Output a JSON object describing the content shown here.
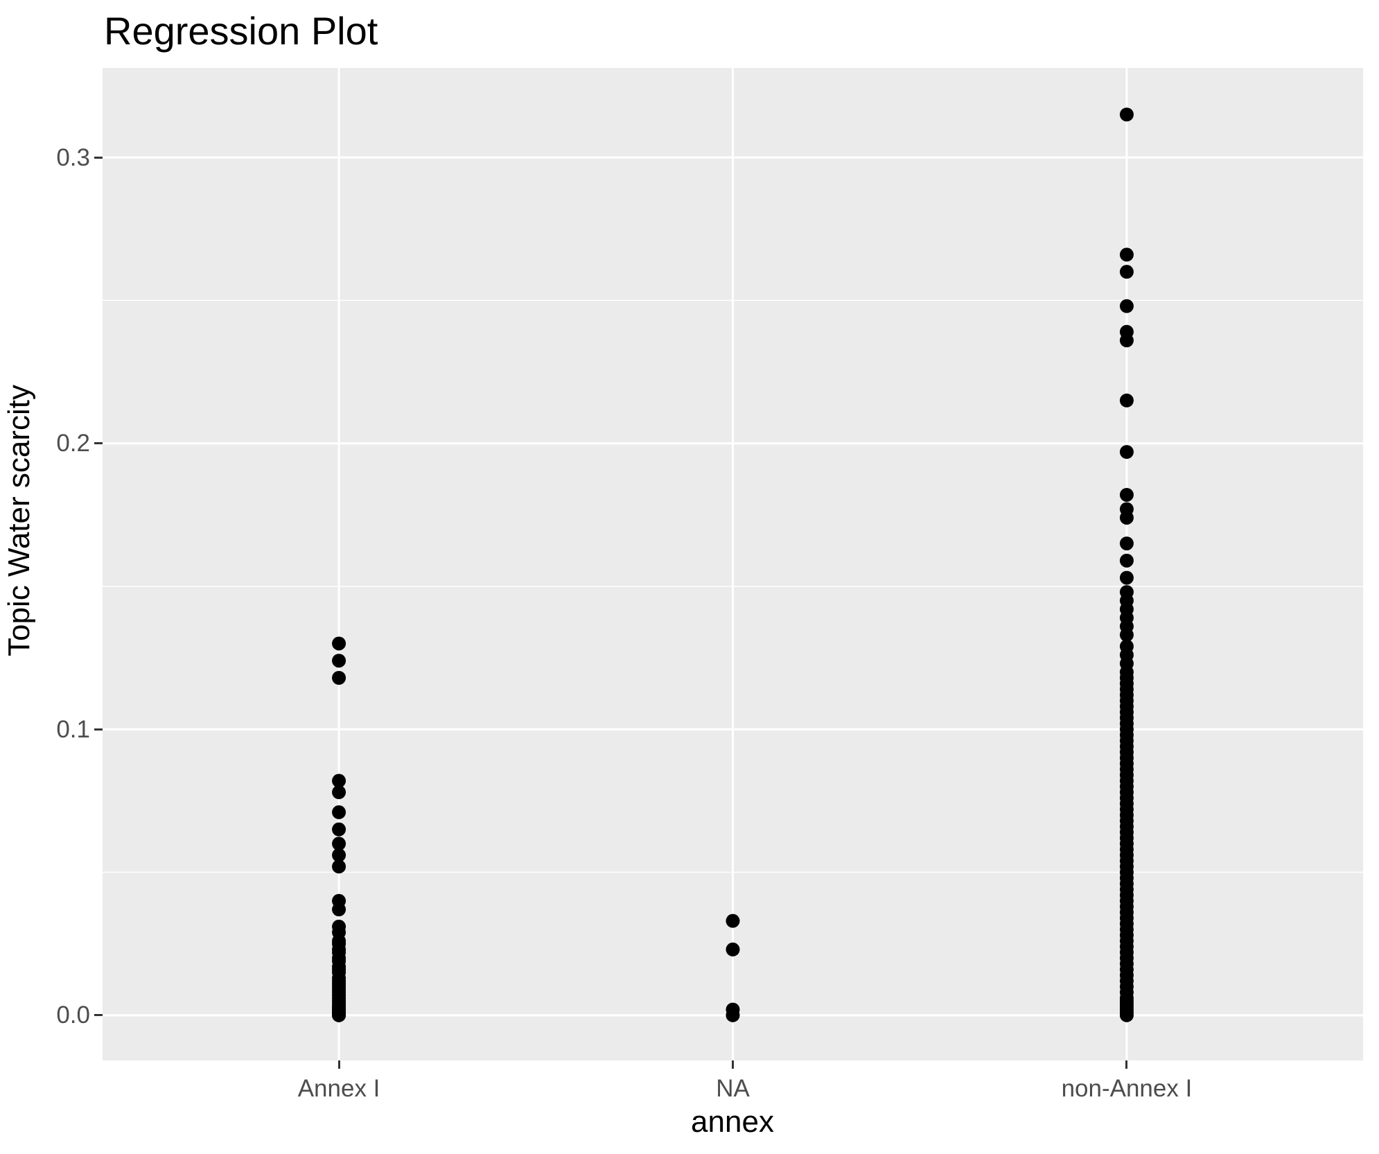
{
  "chart_data": {
    "type": "scatter",
    "title": "Regression Plot",
    "xlabel": "annex",
    "ylabel": "Topic Water scarcity",
    "categories": [
      "Annex I",
      "NA",
      "non-Annex I"
    ],
    "ylim": [
      -0.0158,
      0.3313
    ],
    "y_major_ticks": [
      {
        "value": 0.0,
        "label": "0.0"
      },
      {
        "value": 0.1,
        "label": "0.1"
      },
      {
        "value": 0.2,
        "label": "0.2"
      },
      {
        "value": 0.3,
        "label": "0.3"
      }
    ],
    "y_minor_ticks": [
      0.05,
      0.15,
      0.25
    ],
    "grid": true,
    "legend": false,
    "point_color": "#000000",
    "point_radius": 10,
    "panel_bg": "#EBEBEB",
    "grid_color": "#FFFFFF",
    "tick_color": "#333333",
    "tick_label_color": "#4D4D4D",
    "series": [
      {
        "name": "Annex I",
        "values": [
          0.13,
          0.124,
          0.118,
          0.082,
          0.078,
          0.071,
          0.065,
          0.06,
          0.056,
          0.052,
          0.04,
          0.037,
          0.031,
          0.029,
          0.026,
          0.025,
          0.023,
          0.022,
          0.02,
          0.019,
          0.017,
          0.016,
          0.015,
          0.013,
          0.012,
          0.011,
          0.01,
          0.009,
          0.008,
          0.007,
          0.006,
          0.005,
          0.004,
          0.003,
          0.003,
          0.002,
          0.002,
          0.001,
          0.001,
          0.0,
          0.0
        ]
      },
      {
        "name": "NA",
        "values": [
          0.033,
          0.023,
          0.002,
          0.0
        ]
      },
      {
        "name": "non-Annex I",
        "values": [
          0.315,
          0.266,
          0.26,
          0.248,
          0.239,
          0.236,
          0.215,
          0.197,
          0.182,
          0.177,
          0.174,
          0.165,
          0.159,
          0.153,
          0.148,
          0.145,
          0.142,
          0.139,
          0.136,
          0.133,
          0.129,
          0.126,
          0.123,
          0.12,
          0.118,
          0.116,
          0.114,
          0.112,
          0.11,
          0.108,
          0.106,
          0.104,
          0.102,
          0.1,
          0.098,
          0.096,
          0.094,
          0.092,
          0.09,
          0.088,
          0.086,
          0.084,
          0.082,
          0.08,
          0.078,
          0.076,
          0.074,
          0.072,
          0.07,
          0.068,
          0.066,
          0.064,
          0.062,
          0.06,
          0.058,
          0.056,
          0.054,
          0.052,
          0.05,
          0.048,
          0.046,
          0.044,
          0.042,
          0.04,
          0.038,
          0.036,
          0.034,
          0.032,
          0.03,
          0.028,
          0.026,
          0.024,
          0.022,
          0.02,
          0.018,
          0.016,
          0.014,
          0.012,
          0.01,
          0.008,
          0.006,
          0.005,
          0.004,
          0.003,
          0.002,
          0.001,
          0.0
        ]
      }
    ]
  }
}
